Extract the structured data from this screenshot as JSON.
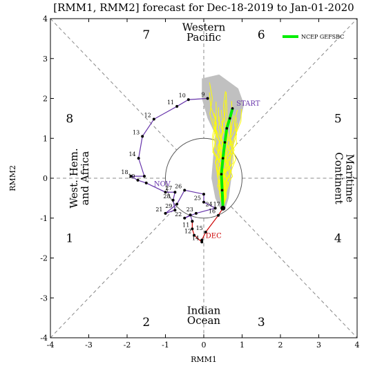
{
  "chart_data": {
    "type": "line",
    "title": "[RMM1, RMM2] forecast for Dec-18-2019 to Jan-01-2020",
    "xlabel": "RMM1",
    "ylabel": "RMM2",
    "xlim": [
      -4,
      4
    ],
    "ylim": [
      -4,
      4
    ],
    "x_ticks": [
      "-4",
      "-3",
      "-2",
      "-1",
      "0",
      "1",
      "2",
      "3",
      "4"
    ],
    "y_ticks": [
      "-4",
      "-3",
      "-2",
      "-1",
      "0",
      "1",
      "2",
      "3",
      "4"
    ],
    "phases": [
      {
        "label": "1",
        "x": -3.5,
        "y": -1.5
      },
      {
        "label": "2",
        "x": -1.5,
        "y": -3.6
      },
      {
        "label": "3",
        "x": 1.5,
        "y": -3.6
      },
      {
        "label": "4",
        "x": 3.5,
        "y": -1.5
      },
      {
        "label": "5",
        "x": 3.5,
        "y": 1.5
      },
      {
        "label": "6",
        "x": 1.5,
        "y": 3.6
      },
      {
        "label": "7",
        "x": -1.5,
        "y": 3.6
      },
      {
        "label": "8",
        "x": -3.5,
        "y": 1.5
      }
    ],
    "regions": {
      "top": [
        "Western",
        "Pacific"
      ],
      "bottom": [
        "Indian",
        "Ocean"
      ],
      "left": [
        "West. Hem.",
        "and Africa"
      ],
      "right": [
        "Maritime",
        "Continent"
      ]
    },
    "legend": {
      "label": "NCEP GEFSBC",
      "color": "#00ee00",
      "position": "top-right"
    },
    "series": [
      {
        "name": "NOV",
        "color": "#6633aa",
        "label_at": [
          -1.3,
          -0.2
        ],
        "points": [
          {
            "d": "9",
            "x": 0.1,
            "y": 2.0
          },
          {
            "d": "10",
            "x": -0.4,
            "y": 1.97
          },
          {
            "d": "11",
            "x": -0.7,
            "y": 1.8
          },
          {
            "d": "12",
            "x": -1.3,
            "y": 1.48
          },
          {
            "d": "13",
            "x": -1.6,
            "y": 1.05
          },
          {
            "d": "14",
            "x": -1.7,
            "y": 0.5
          },
          {
            "d": "",
            "x": -1.55,
            "y": 0.05
          },
          {
            "d": "18",
            "x": -1.9,
            "y": 0.05
          },
          {
            "d": "19",
            "x": -1.72,
            "y": -0.05
          },
          {
            "d": "",
            "x": -1.5,
            "y": -0.12
          },
          {
            "d": "",
            "x": -1.0,
            "y": -0.35
          },
          {
            "d": "27",
            "x": -0.75,
            "y": -0.35
          },
          {
            "d": "28",
            "x": -0.8,
            "y": -0.55
          },
          {
            "d": "29",
            "x": -0.75,
            "y": -0.8
          },
          {
            "d": "21",
            "x": -1.0,
            "y": -0.88
          },
          {
            "d": "",
            "x": -0.7,
            "y": -0.65
          },
          {
            "d": "26",
            "x": -0.5,
            "y": -0.3
          },
          {
            "d": "",
            "x": 0.0,
            "y": -0.4
          },
          {
            "d": "25",
            "x": 0.0,
            "y": -0.6
          },
          {
            "d": "24",
            "x": 0.3,
            "y": -0.75
          },
          {
            "d": "23",
            "x": -0.2,
            "y": -0.88
          },
          {
            "d": "22",
            "x": -0.5,
            "y": -1.0
          },
          {
            "d": "",
            "x": -0.35,
            "y": -0.92
          },
          {
            "d": "",
            "x": -0.3,
            "y": -1.08
          }
        ]
      },
      {
        "name": "DEC",
        "color": "#cc0000",
        "label_at": [
          0.05,
          -1.5
        ],
        "points": [
          {
            "d": "",
            "x": -0.3,
            "y": -1.08
          },
          {
            "d": "11",
            "x": -0.3,
            "y": -1.27
          },
          {
            "d": "12",
            "x": -0.25,
            "y": -1.43
          },
          {
            "d": "14",
            "x": -0.05,
            "y": -1.6
          },
          {
            "d": "",
            "x": -0.05,
            "y": -1.55
          },
          {
            "d": "15",
            "x": 0.05,
            "y": -1.35
          },
          {
            "d": "16",
            "x": 0.38,
            "y": -0.93
          },
          {
            "d": "17",
            "x": 0.5,
            "y": -0.75
          }
        ]
      }
    ],
    "start_label": "START",
    "start_label_color": "#6633aa",
    "start_point": {
      "x": 0.5,
      "y": -0.75
    },
    "ensemble_mean": {
      "color": "#00ee00",
      "points": [
        [
          0.5,
          -0.75
        ],
        [
          0.48,
          -0.3
        ],
        [
          0.46,
          0.1
        ],
        [
          0.5,
          0.5
        ],
        [
          0.55,
          0.9
        ],
        [
          0.6,
          1.25
        ],
        [
          0.68,
          1.5
        ],
        [
          0.75,
          1.75
        ]
      ]
    },
    "spread_color": "#c0c0c0",
    "member_color": "#ffff00",
    "grid": true
  }
}
